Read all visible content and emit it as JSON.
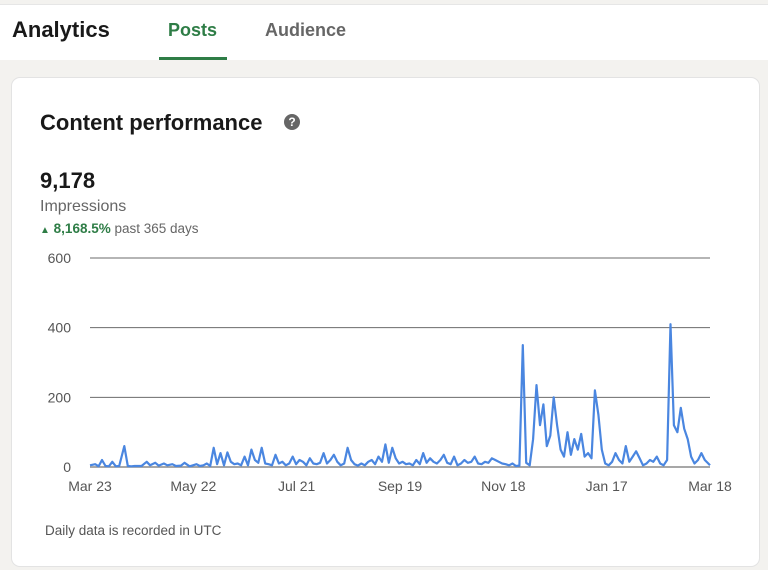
{
  "header": {
    "title": "Analytics",
    "tabs": [
      {
        "label": "Posts",
        "active": true
      },
      {
        "label": "Audience",
        "active": false
      }
    ]
  },
  "card": {
    "title": "Content performance",
    "help_icon": "question-circle-icon",
    "metric": {
      "value": "9,178",
      "label": "Impressions",
      "change_arrow": "▲",
      "change_value": "8,168.5%",
      "change_period": "past 365 days"
    },
    "footnote": "Daily data is recorded in UTC"
  },
  "colors": {
    "accent_green": "#2e7d46",
    "line_blue": "#4a86e0",
    "grid": "#6b6b6b"
  },
  "chart_data": {
    "type": "line",
    "title": "",
    "xlabel": "",
    "ylabel": "Impressions",
    "ylim": [
      0,
      600
    ],
    "yticks": [
      0,
      200,
      400,
      600
    ],
    "xticks": [
      "Mar 23",
      "May 22",
      "Jul 21",
      "Sep 19",
      "Nov 18",
      "Jan 17",
      "Mar 18"
    ],
    "grid": true,
    "legend": "none",
    "series": [
      {
        "name": "Impressions",
        "x_day_index": [
          0,
          3,
          5,
          7,
          9,
          11,
          13,
          15,
          17,
          20,
          22,
          24,
          26,
          30,
          33,
          35,
          38,
          40,
          43,
          45,
          48,
          50,
          53,
          55,
          58,
          60,
          62,
          64,
          66,
          68,
          70,
          72,
          74,
          76,
          78,
          80,
          82,
          84,
          86,
          88,
          90,
          92,
          94,
          96,
          98,
          100,
          102,
          104,
          106,
          108,
          110,
          112,
          114,
          116,
          118,
          120,
          122,
          124,
          126,
          128,
          130,
          132,
          134,
          136,
          138,
          140,
          142,
          144,
          146,
          148,
          150,
          152,
          154,
          156,
          158,
          160,
          162,
          164,
          166,
          168,
          170,
          172,
          174,
          176,
          178,
          180,
          182,
          184,
          186,
          188,
          190,
          192,
          194,
          196,
          198,
          200,
          202,
          204,
          206,
          208,
          210,
          212,
          214,
          216,
          218,
          220,
          222,
          224,
          226,
          228,
          230,
          232,
          234,
          236,
          238,
          240,
          242,
          244,
          246,
          248,
          250,
          252,
          254,
          256,
          258,
          260,
          262,
          264,
          266,
          268,
          270,
          272,
          274,
          276,
          278,
          280,
          282,
          284,
          286,
          288,
          290,
          292,
          294,
          296,
          298,
          300,
          302,
          304,
          306,
          308,
          310,
          312,
          314,
          316,
          318,
          320,
          322,
          324,
          326,
          328,
          330,
          332,
          334,
          336,
          338,
          340,
          342,
          344,
          346,
          348,
          350,
          352,
          354,
          356,
          358,
          360,
          361
        ],
        "values": [
          5,
          8,
          2,
          20,
          3,
          2,
          15,
          2,
          3,
          60,
          3,
          2,
          3,
          3,
          15,
          5,
          12,
          4,
          10,
          5,
          8,
          3,
          4,
          12,
          2,
          5,
          8,
          3,
          5,
          10,
          3,
          55,
          8,
          40,
          5,
          42,
          15,
          8,
          10,
          5,
          30,
          5,
          50,
          20,
          12,
          55,
          10,
          8,
          5,
          35,
          10,
          15,
          5,
          10,
          30,
          8,
          20,
          15,
          5,
          25,
          10,
          8,
          12,
          40,
          10,
          20,
          35,
          15,
          5,
          10,
          55,
          20,
          8,
          4,
          10,
          5,
          15,
          20,
          8,
          30,
          15,
          65,
          12,
          55,
          25,
          10,
          15,
          8,
          10,
          5,
          20,
          8,
          40,
          12,
          25,
          15,
          10,
          20,
          35,
          12,
          8,
          30,
          5,
          10,
          20,
          12,
          15,
          30,
          10,
          8,
          15,
          12,
          25,
          20,
          15,
          10,
          8,
          5,
          10,
          3,
          4,
          350,
          12,
          5,
          80,
          235,
          120,
          180,
          60,
          90,
          200,
          120,
          50,
          30,
          100,
          35,
          80,
          50,
          95,
          30,
          40,
          25,
          220,
          150,
          50,
          10,
          5,
          15,
          40,
          20,
          10,
          60,
          15,
          30,
          45,
          25,
          5,
          10,
          20,
          15,
          30,
          10,
          5,
          20,
          410,
          120,
          100,
          170,
          110,
          80,
          30,
          10,
          20,
          40,
          20,
          10,
          5,
          15,
          5,
          8,
          3,
          5,
          4
        ]
      }
    ]
  }
}
